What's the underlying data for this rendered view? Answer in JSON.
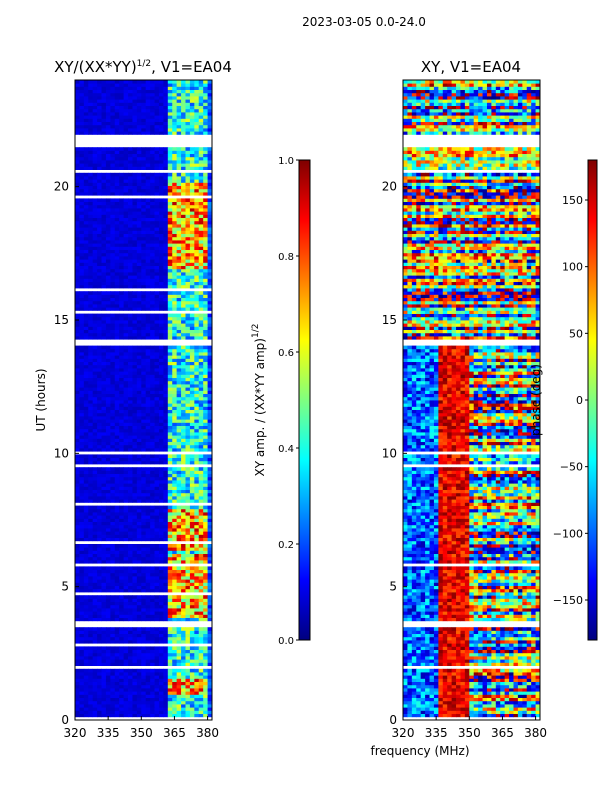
{
  "chart_data": [
    {
      "type": "heatmap",
      "suptitle": "2023-03-05 0.0-24.0",
      "title": "XY/(XX*YY)",
      "title_sup": "1/2",
      "title_suffix": ", V1=EA04",
      "ylabel": "UT (hours)",
      "xlabel": "",
      "xlim": [
        320,
        382
      ],
      "ylim": [
        0,
        24
      ],
      "xticks": [
        "320",
        "335",
        "350",
        "365",
        "380"
      ],
      "xtick_values": [
        320,
        335,
        350,
        365,
        380
      ],
      "yticks": [
        "0",
        "5",
        "10",
        "15",
        "20"
      ],
      "ytick_values": [
        0,
        5,
        10,
        15,
        20
      ],
      "colormap": "jet",
      "colorbar": {
        "label": "XY amp. / (XX*YY amp)",
        "label_sup": "1/2",
        "range": [
          0.0,
          1.0
        ],
        "ticks": [
          "0.0",
          "0.2",
          "0.4",
          "0.6",
          "0.8",
          "1.0"
        ],
        "tick_values": [
          0.0,
          0.2,
          0.4,
          0.6,
          0.8,
          1.0
        ]
      },
      "flagged_ut_hours": [
        [
          21.45,
          21.95
        ],
        [
          20.5,
          20.62
        ],
        [
          14.05,
          14.25
        ],
        [
          9.92,
          10.1
        ],
        [
          9.45,
          9.55
        ],
        [
          5.75,
          5.85
        ],
        [
          3.45,
          3.7
        ],
        [
          1.95,
          2.02
        ],
        [
          0.02,
          0.12
        ],
        [
          23.0,
          23.05
        ],
        [
          22.5,
          22.56
        ],
        [
          21.1,
          21.16
        ],
        [
          19.6,
          19.65
        ],
        [
          18.2,
          18.26
        ],
        [
          17.4,
          17.45
        ],
        [
          16.1,
          16.15
        ],
        [
          15.3,
          15.36
        ],
        [
          13.3,
          13.36
        ],
        [
          12.7,
          12.76
        ],
        [
          11.6,
          11.65
        ],
        [
          8.6,
          8.66
        ],
        [
          8.1,
          8.15
        ],
        [
          7.2,
          7.25
        ],
        [
          6.6,
          6.66
        ],
        [
          4.7,
          4.76
        ],
        [
          4.2,
          4.25
        ],
        [
          2.8,
          2.86
        ],
        [
          1.2,
          1.25
        ]
      ],
      "high_coherence_band_mhz": [
        363,
        380
      ],
      "high_coherence_ut_hours": [
        [
          0.9,
          1.6
        ],
        [
          3.8,
          6.2
        ],
        [
          6.4,
          7.9
        ],
        [
          16.9,
          20.2
        ]
      ]
    },
    {
      "type": "heatmap",
      "title": "XY",
      "title_suffix": ", V1=EA04",
      "ylabel": "",
      "xlabel": "frequency (MHz)",
      "xlim": [
        320,
        382
      ],
      "ylim": [
        0,
        24
      ],
      "xticks": [
        "320",
        "335",
        "350",
        "365",
        "380"
      ],
      "xtick_values": [
        320,
        335,
        350,
        365,
        380
      ],
      "yticks": [
        "0",
        "5",
        "10",
        "15",
        "20"
      ],
      "ytick_values": [
        0,
        5,
        10,
        15,
        20
      ],
      "colormap": "jet",
      "colorbar": {
        "label": "phase (deg)",
        "range": [
          -180,
          180
        ],
        "ticks": [
          "150",
          "100",
          "50",
          "0",
          "−50",
          "−100",
          "−150"
        ],
        "tick_values": [
          150,
          100,
          50,
          0,
          -50,
          -100,
          -150
        ]
      },
      "flagged_ut_hours": [
        [
          21.45,
          21.95
        ],
        [
          20.5,
          20.62
        ],
        [
          14.05,
          14.25
        ],
        [
          9.92,
          10.1
        ],
        [
          9.45,
          9.55
        ],
        [
          5.75,
          5.85
        ],
        [
          3.45,
          3.7
        ],
        [
          1.95,
          2.02
        ],
        [
          0.02,
          0.12
        ]
      ]
    }
  ]
}
